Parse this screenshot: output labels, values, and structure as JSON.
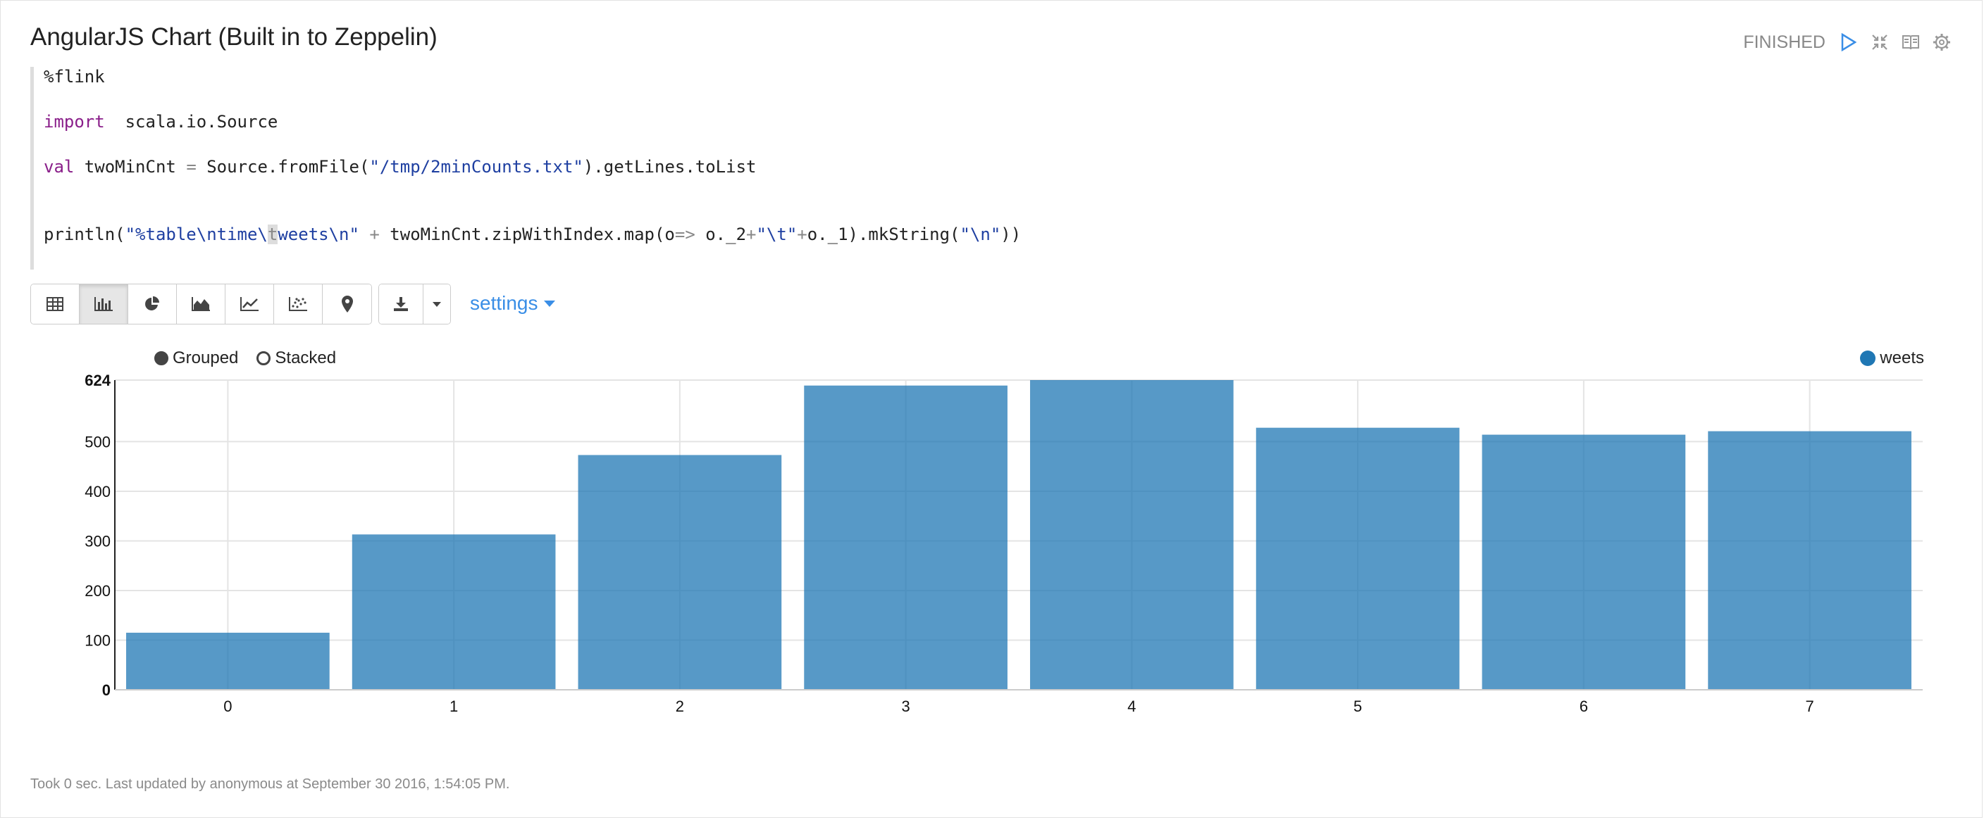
{
  "paragraph": {
    "title": "AngularJS Chart (Built in to Zeppelin)",
    "status": "FINISHED",
    "controls": [
      {
        "name": "run-icon",
        "color": "#3a8ee6"
      },
      {
        "name": "collapse-icon",
        "color": "#999999"
      },
      {
        "name": "book-icon",
        "color": "#999999"
      },
      {
        "name": "gear-icon",
        "color": "#999999"
      }
    ]
  },
  "code": {
    "line1": "%flink",
    "line2_kw": "import",
    "line2_rest": "  scala.io.Source",
    "line3_kw": "val",
    "line3_a": " twoMinCnt ",
    "line3_eq": "=",
    "line3_b": " Source.fromFile(",
    "line3_str": "\"/tmp/2minCounts.txt\"",
    "line3_c": ").getLines.toList",
    "line5_a": "println(",
    "line5_str1": "\"%table\\ntime\\",
    "line5_cursor": "t",
    "line5_str2": "weets\\n\"",
    "line5_plus": " + ",
    "line5_b": "twoMinCnt.zipWithIndex.map(o",
    "line5_arrow": "=>",
    "line5_c": " o._2",
    "line5_plus2": "+",
    "line5_str3": "\"\\t\"",
    "line5_plus3": "+",
    "line5_d": "o._1).mkString(",
    "line5_str4": "\"\\n\"",
    "line5_e": "))"
  },
  "toolbar": {
    "buttons": [
      {
        "name": "table-icon",
        "active": false
      },
      {
        "name": "bar-chart-icon",
        "active": true
      },
      {
        "name": "pie-chart-icon",
        "active": false
      },
      {
        "name": "area-chart-icon",
        "active": false
      },
      {
        "name": "line-chart-icon",
        "active": false
      },
      {
        "name": "scatter-chart-icon",
        "active": false
      },
      {
        "name": "map-pin-icon",
        "active": false
      }
    ],
    "download_icon": "download-icon",
    "settings_label": "settings"
  },
  "chart_options": {
    "grouped_label": "Grouped",
    "stacked_label": "Stacked",
    "selected": "Grouped"
  },
  "chart_data": {
    "type": "bar",
    "categories": [
      "0",
      "1",
      "2",
      "3",
      "4",
      "5",
      "6",
      "7"
    ],
    "series": [
      {
        "name": "weets",
        "values": [
          115,
          313,
          473,
          613,
          624,
          528,
          514,
          521
        ],
        "color": "#1f77b4"
      }
    ],
    "yticks": [
      0,
      100,
      200,
      300,
      400,
      500,
      624
    ],
    "ylim": [
      0,
      624
    ],
    "grid": true,
    "legend": "top-right"
  },
  "footer": {
    "text": "Took 0 sec. Last updated by anonymous at September 30 2016, 1:54:05 PM."
  }
}
